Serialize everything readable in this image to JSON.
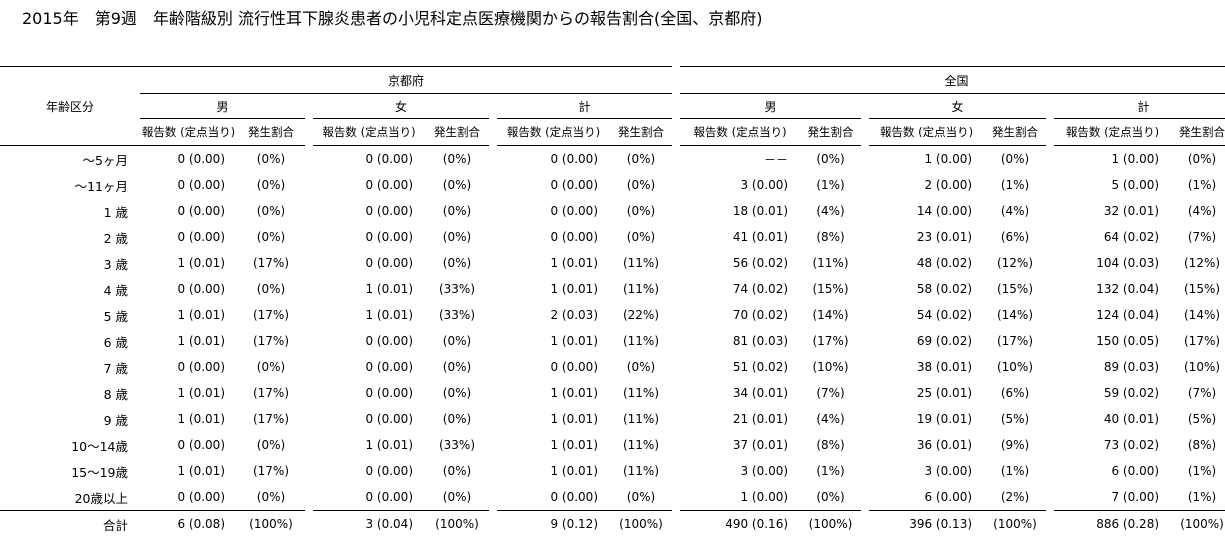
{
  "title": "2015年　第9週　年齢階級別 流行性耳下腺炎患者の小児科定点医療機関からの報告割合(全国、京都府)",
  "header": {
    "age_label": "年齢区分",
    "regions": [
      "京都府",
      "全国"
    ],
    "genders": [
      "男",
      "女",
      "計"
    ],
    "count_label": "報告数 (定点当り)",
    "rate_label": "発生割合"
  },
  "rows": [
    {
      "age": "～5ヶ月",
      "cells": [
        "0 (0.00)",
        "(0%)",
        "0 (0.00)",
        "(0%)",
        "0 (0.00)",
        "(0%)",
        "－－",
        "(0%)",
        "1 (0.00)",
        "(0%)",
        "1 (0.00)",
        "(0%)"
      ]
    },
    {
      "age": "～11ヶ月",
      "cells": [
        "0 (0.00)",
        "(0%)",
        "0 (0.00)",
        "(0%)",
        "0 (0.00)",
        "(0%)",
        "3 (0.00)",
        "(1%)",
        "2 (0.00)",
        "(1%)",
        "5 (0.00)",
        "(1%)"
      ]
    },
    {
      "age": "1 歳",
      "cells": [
        "0 (0.00)",
        "(0%)",
        "0 (0.00)",
        "(0%)",
        "0 (0.00)",
        "(0%)",
        "18 (0.01)",
        "(4%)",
        "14 (0.00)",
        "(4%)",
        "32 (0.01)",
        "(4%)"
      ]
    },
    {
      "age": "2 歳",
      "cells": [
        "0 (0.00)",
        "(0%)",
        "0 (0.00)",
        "(0%)",
        "0 (0.00)",
        "(0%)",
        "41 (0.01)",
        "(8%)",
        "23 (0.01)",
        "(6%)",
        "64 (0.02)",
        "(7%)"
      ]
    },
    {
      "age": "3 歳",
      "cells": [
        "1 (0.01)",
        "(17%)",
        "0 (0.00)",
        "(0%)",
        "1 (0.01)",
        "(11%)",
        "56 (0.02)",
        "(11%)",
        "48 (0.02)",
        "(12%)",
        "104 (0.03)",
        "(12%)"
      ]
    },
    {
      "age": "4 歳",
      "cells": [
        "0 (0.00)",
        "(0%)",
        "1 (0.01)",
        "(33%)",
        "1 (0.01)",
        "(11%)",
        "74 (0.02)",
        "(15%)",
        "58 (0.02)",
        "(15%)",
        "132 (0.04)",
        "(15%)"
      ]
    },
    {
      "age": "5 歳",
      "cells": [
        "1 (0.01)",
        "(17%)",
        "1 (0.01)",
        "(33%)",
        "2 (0.03)",
        "(22%)",
        "70 (0.02)",
        "(14%)",
        "54 (0.02)",
        "(14%)",
        "124 (0.04)",
        "(14%)"
      ]
    },
    {
      "age": "6 歳",
      "cells": [
        "1 (0.01)",
        "(17%)",
        "0 (0.00)",
        "(0%)",
        "1 (0.01)",
        "(11%)",
        "81 (0.03)",
        "(17%)",
        "69 (0.02)",
        "(17%)",
        "150 (0.05)",
        "(17%)"
      ]
    },
    {
      "age": "7 歳",
      "cells": [
        "0 (0.00)",
        "(0%)",
        "0 (0.00)",
        "(0%)",
        "0 (0.00)",
        "(0%)",
        "51 (0.02)",
        "(10%)",
        "38 (0.01)",
        "(10%)",
        "89 (0.03)",
        "(10%)"
      ]
    },
    {
      "age": "8 歳",
      "cells": [
        "1 (0.01)",
        "(17%)",
        "0 (0.00)",
        "(0%)",
        "1 (0.01)",
        "(11%)",
        "34 (0.01)",
        "(7%)",
        "25 (0.01)",
        "(6%)",
        "59 (0.02)",
        "(7%)"
      ]
    },
    {
      "age": "9 歳",
      "cells": [
        "1 (0.01)",
        "(17%)",
        "0 (0.00)",
        "(0%)",
        "1 (0.01)",
        "(11%)",
        "21 (0.01)",
        "(4%)",
        "19 (0.01)",
        "(5%)",
        "40 (0.01)",
        "(5%)"
      ]
    },
    {
      "age": "10～14歳",
      "cells": [
        "0 (0.00)",
        "(0%)",
        "1 (0.01)",
        "(33%)",
        "1 (0.01)",
        "(11%)",
        "37 (0.01)",
        "(8%)",
        "36 (0.01)",
        "(9%)",
        "73 (0.02)",
        "(8%)"
      ]
    },
    {
      "age": "15～19歳",
      "cells": [
        "1 (0.01)",
        "(17%)",
        "0 (0.00)",
        "(0%)",
        "1 (0.01)",
        "(11%)",
        "3 (0.00)",
        "(1%)",
        "3 (0.00)",
        "(1%)",
        "6 (0.00)",
        "(1%)"
      ]
    },
    {
      "age": "20歳以上",
      "cells": [
        "0 (0.00)",
        "(0%)",
        "0 (0.00)",
        "(0%)",
        "0 (0.00)",
        "(0%)",
        "1 (0.00)",
        "(0%)",
        "6 (0.00)",
        "(2%)",
        "7 (0.00)",
        "(1%)"
      ]
    }
  ],
  "total": {
    "age": "合計",
    "cells": [
      "6 (0.08)",
      "(100%)",
      "3 (0.04)",
      "(100%)",
      "9 (0.12)",
      "(100%)",
      "490 (0.16)",
      "(100%)",
      "396 (0.13)",
      "(100%)",
      "886 (0.28)",
      "(100%)"
    ]
  }
}
